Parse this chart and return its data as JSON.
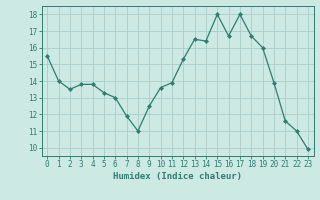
{
  "x": [
    0,
    1,
    2,
    3,
    4,
    5,
    6,
    7,
    8,
    9,
    10,
    11,
    12,
    13,
    14,
    15,
    16,
    17,
    18,
    19,
    20,
    21,
    22,
    23
  ],
  "y": [
    15.5,
    14.0,
    13.5,
    13.8,
    13.8,
    13.3,
    13.0,
    11.9,
    11.0,
    12.5,
    13.6,
    13.9,
    15.3,
    16.5,
    16.4,
    18.0,
    16.7,
    18.0,
    16.7,
    16.0,
    13.9,
    11.6,
    11.0,
    9.9
  ],
  "line_color": "#2e7d6e",
  "marker": "D",
  "marker_size": 2,
  "bg_color": "#cce9e4",
  "grid_color": "#aacdc8",
  "xlabel": "Humidex (Indice chaleur)",
  "ylim": [
    9.5,
    18.5
  ],
  "xlim": [
    -0.5,
    23.5
  ],
  "yticks": [
    10,
    11,
    12,
    13,
    14,
    15,
    16,
    17,
    18
  ],
  "xticks": [
    0,
    1,
    2,
    3,
    4,
    5,
    6,
    7,
    8,
    9,
    10,
    11,
    12,
    13,
    14,
    15,
    16,
    17,
    18,
    19,
    20,
    21,
    22,
    23
  ],
  "font_color": "#2e7d6e",
  "label_fontsize": 6.5,
  "tick_fontsize": 5.5,
  "linewidth": 0.9
}
